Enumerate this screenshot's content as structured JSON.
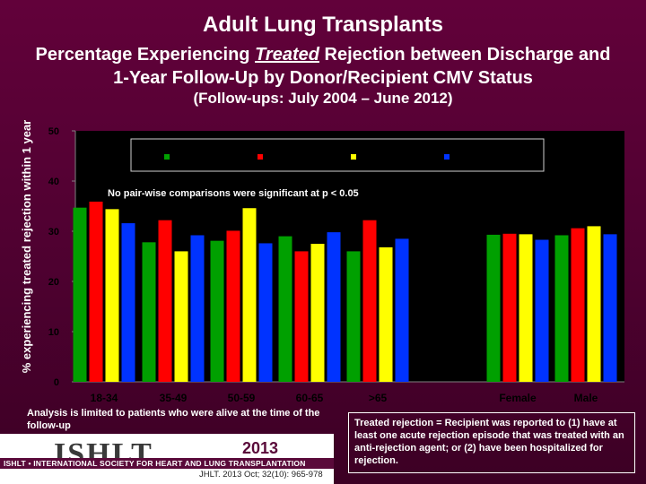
{
  "header": {
    "title": "Adult Lung Transplants",
    "subtitle_line1": "Percentage Experiencing Treated Rejection between Discharge and",
    "subtitle_emph": "Treated",
    "subtitle_line2": "1-Year Follow-Up by Donor/Recipient CMV Status",
    "period": "(Follow-ups: July 2004 – June 2012)"
  },
  "colors": {
    "plot_bg": "#000000",
    "axis": "#808080",
    "series": [
      "#00a000",
      "#ff0000",
      "#ffff00",
      "#0033ff"
    ]
  },
  "chart_data": {
    "type": "bar",
    "title": "",
    "ylabel": "% experiencing treated rejection within 1 year",
    "xlabel": "",
    "ylim": [
      0,
      50
    ],
    "yticks": [
      0,
      10,
      20,
      30,
      40,
      50
    ],
    "categories": [
      "18-34",
      "35-49",
      "50-59",
      "60-65",
      ">65",
      "",
      "Female",
      "Male"
    ],
    "series": [
      {
        "name": "",
        "color": "#00a000",
        "values": [
          34.7,
          27.8,
          28.1,
          29.0,
          26.0,
          null,
          29.3,
          29.2
        ]
      },
      {
        "name": "",
        "color": "#ff0000",
        "values": [
          35.9,
          32.2,
          30.1,
          26.0,
          32.2,
          null,
          29.5,
          30.6
        ]
      },
      {
        "name": "",
        "color": "#ffff00",
        "values": [
          34.4,
          26.0,
          34.6,
          27.5,
          26.8,
          null,
          29.4,
          31.0
        ]
      },
      {
        "name": "",
        "color": "#0033ff",
        "values": [
          31.6,
          29.2,
          27.6,
          29.8,
          28.5,
          null,
          28.3,
          29.4
        ]
      }
    ],
    "legend_placement": "top",
    "annotation": "No pair-wise comparisons were significant at p < 0.05"
  },
  "notes": {
    "left": "Analysis is limited to patients who were alive at the time of the follow-up",
    "right": "Treated rejection = Recipient was reported to (1) have at least one acute rejection episode that was treated with an anti-rejection agent; or (2) have been hospitalized for rejection."
  },
  "footer": {
    "logo_text": "ISHLT",
    "logo_subtitle": "ISHLT • INTERNATIONAL SOCIETY FOR HEART AND LUNG TRANSPLANTATION",
    "year": "2013",
    "citation": "JHLT. 2013 Oct; 32(10): 965-978"
  }
}
